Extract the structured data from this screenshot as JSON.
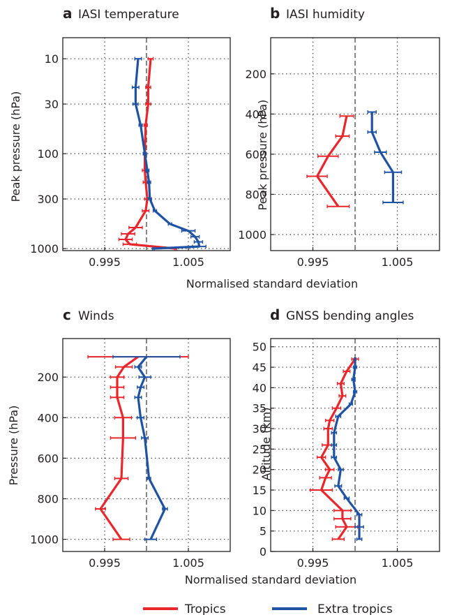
{
  "colors": {
    "tropics": "#e8262b",
    "extra_tropics": "#1f52a2",
    "refline": "#444444",
    "grid": "#444444",
    "frame": "#231f20"
  },
  "shared_xlabel": "Normalised standard deviation",
  "legend": {
    "placement": "bottom-center",
    "entries": [
      "Tropics",
      "Extra tropics"
    ]
  },
  "chart_data": [
    {
      "id": "a",
      "panel_letter": "a",
      "title": "IASI temperature",
      "type": "line",
      "xlabel": "Normalised standard deviation",
      "ylabel": "Peak pressure (hPa)",
      "xlim": [
        0.99,
        1.01
      ],
      "xticks": [
        0.995,
        1.005
      ],
      "xtick_labels": [
        "0.995",
        "1.005"
      ],
      "xgrid": [
        0.995,
        1.0,
        1.005
      ],
      "yscale": "log",
      "ylim": [
        6,
        1050
      ],
      "yinverted": true,
      "yticks": [
        10,
        30,
        100,
        300,
        1000
      ],
      "ytick_labels": [
        "10",
        "30",
        "100",
        "300",
        "1000"
      ],
      "ygrid": [
        10,
        30,
        100,
        300,
        1000
      ],
      "grid": true,
      "reference_line": 1.0,
      "series": [
        {
          "name": "Tropics",
          "points": [
            [
              1.0005,
              10
            ],
            [
              1.0002,
              20
            ],
            [
              1.0002,
              30
            ],
            [
              0.9999,
              50
            ],
            [
              0.9998,
              100
            ],
            [
              0.9998,
              150
            ],
            [
              0.9999,
              200
            ],
            [
              1.0001,
              300
            ],
            [
              0.9999,
              400
            ],
            [
              0.9987,
              600
            ],
            [
              0.9978,
              700
            ],
            [
              0.9975,
              800
            ],
            [
              0.998,
              900
            ],
            [
              1.0035,
              1000
            ]
          ],
          "error": [
            0.0003,
            0.0003,
            0.0003,
            0.0002,
            0.0002,
            0.0003,
            0.0003,
            0.0003,
            0.0004,
            0.0008,
            0.0008,
            0.0008,
            0.0008,
            0.0001
          ]
        },
        {
          "name": "Extra tropics",
          "points": [
            [
              0.999,
              10
            ],
            [
              0.9987,
              20
            ],
            [
              0.9987,
              30
            ],
            [
              0.9993,
              50
            ],
            [
              0.9998,
              100
            ],
            [
              1.0001,
              150
            ],
            [
              1.0003,
              200
            ],
            [
              1.0004,
              300
            ],
            [
              1.001,
              400
            ],
            [
              1.0028,
              550
            ],
            [
              1.005,
              650
            ],
            [
              1.0058,
              750
            ],
            [
              1.0062,
              850
            ],
            [
              1.0063,
              950
            ],
            [
              1.0008,
              1000
            ]
          ],
          "error": [
            0.0004,
            0.0004,
            0.0003,
            0.0002,
            0.0002,
            0.0002,
            0.0002,
            0.0002,
            0.0002,
            0.0002,
            0.0008,
            0.0005,
            0.0005,
            0.0008,
            0.0001
          ]
        }
      ]
    },
    {
      "id": "b",
      "panel_letter": "b",
      "title": "IASI humidity",
      "type": "line",
      "xlabel": "Normalised standard deviation",
      "ylabel": "Peak pressure (hPa)",
      "xlim": [
        0.99,
        1.01
      ],
      "xticks": [
        0.995,
        1.005
      ],
      "xtick_labels": [
        "0.995",
        "1.005"
      ],
      "xgrid": [
        0.995,
        1.0,
        1.005
      ],
      "yscale": "linear",
      "ylim": [
        20,
        1080
      ],
      "yinverted": true,
      "yticks": [
        200,
        400,
        600,
        800,
        1000
      ],
      "ytick_labels": [
        "200",
        "400",
        "600",
        "800",
        "1000"
      ],
      "ygrid": [
        200,
        400,
        600,
        800,
        1000
      ],
      "grid": true,
      "reference_line": 1.0,
      "series": [
        {
          "name": "Tropics",
          "points": [
            [
              0.999,
              410
            ],
            [
              0.9985,
              510
            ],
            [
              0.9968,
              610
            ],
            [
              0.9955,
              710
            ],
            [
              0.998,
              860
            ]
          ],
          "error": [
            0.0008,
            0.0008,
            0.0012,
            0.0012,
            0.0013
          ]
        },
        {
          "name": "Extra tropics",
          "points": [
            [
              1.002,
              390
            ],
            [
              1.002,
              490
            ],
            [
              1.003,
              590
            ],
            [
              1.0045,
              690
            ],
            [
              1.0045,
              840
            ]
          ],
          "error": [
            0.0005,
            0.0005,
            0.0007,
            0.001,
            0.0012
          ]
        }
      ]
    },
    {
      "id": "c",
      "panel_letter": "c",
      "title": "Winds",
      "type": "line",
      "xlabel": "Normalised standard deviation",
      "ylabel": "Pressure (hPa)",
      "xlim": [
        0.99,
        1.01
      ],
      "xticks": [
        0.995,
        1.005
      ],
      "xtick_labels": [
        "0.995",
        "1.005"
      ],
      "xgrid": [
        0.995,
        1.0,
        1.005
      ],
      "yscale": "linear",
      "ylim": [
        10,
        1060
      ],
      "yinverted": true,
      "yticks": [
        200,
        400,
        600,
        800,
        1000
      ],
      "ytick_labels": [
        "200",
        "400",
        "600",
        "800",
        "1000"
      ],
      "ygrid": [
        200,
        400,
        600,
        800,
        1000
      ],
      "grid": true,
      "reference_line": 1.0,
      "series": [
        {
          "name": "Tropics",
          "points": [
            [
              0.999,
              100
            ],
            [
              0.9973,
              150
            ],
            [
              0.9965,
              200
            ],
            [
              0.9965,
              250
            ],
            [
              0.9965,
              300
            ],
            [
              0.9972,
              400
            ],
            [
              0.9972,
              500
            ],
            [
              0.997,
              700
            ],
            [
              0.9945,
              850
            ],
            [
              0.997,
              1000
            ]
          ],
          "error": [
            0.006,
            0.001,
            0.0008,
            0.0008,
            0.0008,
            0.001,
            0.0015,
            0.0008,
            0.0006,
            0.001
          ]
        },
        {
          "name": "Extra tropics",
          "points": [
            [
              1.0,
              100
            ],
            [
              0.999,
              150
            ],
            [
              0.9998,
              200
            ],
            [
              0.9993,
              250
            ],
            [
              0.999,
              300
            ],
            [
              0.9993,
              400
            ],
            [
              0.9998,
              500
            ],
            [
              1.0003,
              700
            ],
            [
              1.0022,
              850
            ],
            [
              1.0005,
              1000
            ]
          ],
          "error": [
            0.004,
            0.0004,
            0.0007,
            0.0004,
            0.0004,
            0.0004,
            0.0004,
            0.0002,
            0.0003,
            0.0007
          ]
        }
      ]
    },
    {
      "id": "d",
      "panel_letter": "d",
      "title": "GNSS bending angles",
      "type": "line",
      "xlabel": "Normalised standard deviation",
      "ylabel": "Altitude (km)",
      "xlim": [
        0.99,
        1.01
      ],
      "xticks": [
        0.995,
        1.005
      ],
      "xtick_labels": [
        "0.995",
        "1.005"
      ],
      "xgrid": [
        0.995,
        1.0,
        1.005
      ],
      "yscale": "linear",
      "ylim": [
        0,
        52
      ],
      "yinverted": false,
      "yticks": [
        0,
        5,
        10,
        15,
        20,
        25,
        30,
        35,
        40,
        45,
        50
      ],
      "ytick_labels": [
        "0",
        "5",
        "10",
        "15",
        "20",
        "25",
        "30",
        "35",
        "40",
        "45",
        "50"
      ],
      "ygrid": [
        5,
        10,
        15,
        20,
        25,
        30,
        35,
        40,
        45,
        50
      ],
      "grid": true,
      "reference_line": 1.0,
      "series": [
        {
          "name": "Tropics",
          "points": [
            [
              0.998,
              3
            ],
            [
              0.999,
              6
            ],
            [
              0.9985,
              8
            ],
            [
              0.9985,
              10
            ],
            [
              0.996,
              15
            ],
            [
              0.9965,
              18
            ],
            [
              0.997,
              20
            ],
            [
              0.996,
              23
            ],
            [
              0.9968,
              26
            ],
            [
              0.9968,
              30
            ],
            [
              0.997,
              32
            ],
            [
              0.9978,
              35
            ],
            [
              0.9985,
              38
            ],
            [
              0.9983,
              41
            ],
            [
              0.999,
              44
            ],
            [
              1.0,
              47
            ]
          ],
          "error": [
            0.0007,
            0.0013,
            0.001,
            0.001,
            0.0013,
            0.0007,
            0.0005,
            0.0005,
            0.0007,
            0.0005,
            0.0005,
            0.0005,
            0.0004,
            0.0004,
            0.0004,
            0.0004
          ]
        },
        {
          "name": "Extra tropics",
          "points": [
            [
              1.0005,
              3
            ],
            [
              1.0005,
              6
            ],
            [
              1.0005,
              9
            ],
            [
              0.999,
              13
            ],
            [
              0.998,
              16
            ],
            [
              0.9983,
              20
            ],
            [
              0.9975,
              23
            ],
            [
              0.9975,
              26
            ],
            [
              0.9975,
              29
            ],
            [
              0.998,
              33
            ],
            [
              0.9995,
              36
            ],
            [
              1.0,
              39
            ],
            [
              0.9998,
              42
            ],
            [
              1.0,
              45
            ],
            [
              1.0,
              47
            ]
          ],
          "error": [
            0.0003,
            0.0005,
            0.0003,
            0.0003,
            0.0004,
            0.0003,
            0.0003,
            0.0003,
            0.0003,
            0.0003,
            0.0002,
            0.0002,
            0.0002,
            0.0002,
            0.0001
          ]
        }
      ]
    }
  ]
}
